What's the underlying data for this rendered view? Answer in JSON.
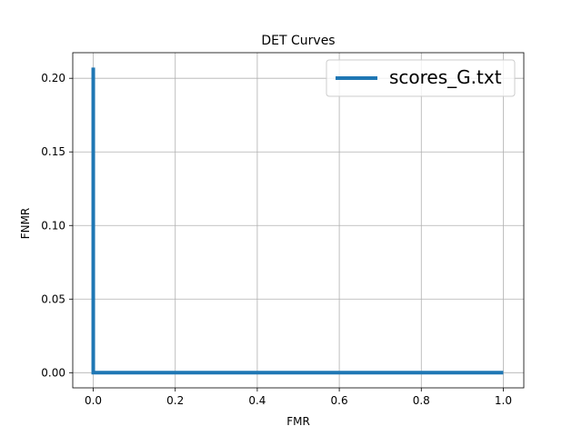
{
  "chart_data": {
    "type": "line",
    "title": "DET Curves",
    "xlabel": "FMR",
    "ylabel": "FNMR",
    "xlim": [
      -0.05,
      1.05
    ],
    "ylim": [
      -0.0103,
      0.2174
    ],
    "x_ticks": [
      0.0,
      0.2,
      0.4,
      0.6,
      0.8,
      1.0
    ],
    "x_tick_labels": [
      "0.0",
      "0.2",
      "0.4",
      "0.6",
      "0.8",
      "1.0"
    ],
    "y_ticks": [
      0.0,
      0.05,
      0.1,
      0.15,
      0.2
    ],
    "y_tick_labels": [
      "0.00",
      "0.05",
      "0.10",
      "0.15",
      "0.20"
    ],
    "grid": true,
    "legend_position": "top-right",
    "series": [
      {
        "name": "scores_G.txt",
        "color": "#1f77b4",
        "x": [
          0.0,
          0.0,
          1.0
        ],
        "y": [
          0.2073,
          0.0,
          0.0
        ]
      }
    ]
  }
}
